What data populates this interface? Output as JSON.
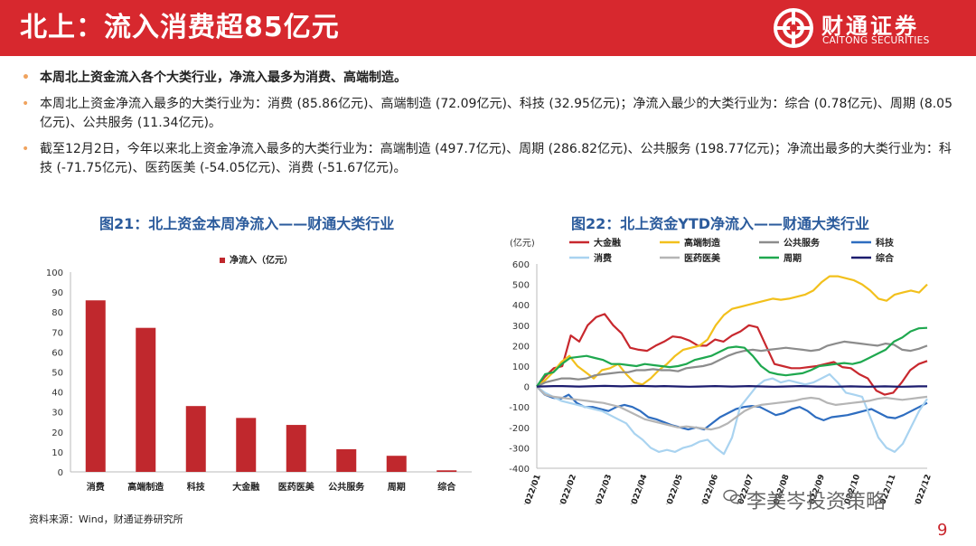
{
  "header": {
    "title": "北上：流入消费超85亿元"
  },
  "logo": {
    "cn": "财通证券",
    "en": "CAITONG SECURITIES",
    "icon": "caitong-logo-icon"
  },
  "bullets": [
    "本周北上资金流入各个大类行业，净流入最多为消费、高端制造。",
    "本周北上资金净流入最多的大类行业为：消费 (85.86亿元)、高端制造 (72.09亿元)、科技 (32.95亿元)；净流入最少的大类行业为：综合 (0.78亿元)、周期 (8.05亿元)、公共服务 (11.34亿元)。",
    "截至12月2日，今年以来北上资金净流入最多的大类行业为：高端制造 (497.7亿元)、周期 (286.82亿元)、公共服务 (198.77亿元)；净流出最多的大类行业为：科技 (-71.75亿元)、医药医美 (-54.05亿元)、消费 (-51.67亿元)。"
  ],
  "figures": {
    "fig21_title": "图21：北上资金本周净流入——财通大类行业",
    "fig22_title": "图22：北上资金YTD净流入——财通大类行业"
  },
  "source": "资料来源：Wind，财通证券研究所",
  "page_number": "9",
  "watermark": "李美岑投资策略",
  "chart_data": [
    {
      "type": "bar",
      "legend": [
        "净流入（亿元）"
      ],
      "categories": [
        "消费",
        "高端制造",
        "科技",
        "大金融",
        "医药医美",
        "公共服务",
        "周期",
        "综合"
      ],
      "values": [
        85.86,
        72.09,
        32.95,
        27,
        23.5,
        11.34,
        8.05,
        0.78
      ],
      "ylim": [
        0,
        100
      ],
      "yticks": [
        0,
        10,
        20,
        30,
        40,
        50,
        60,
        70,
        80,
        90,
        100
      ],
      "color": "#c0282d"
    },
    {
      "type": "line",
      "unit_label": "(亿元)",
      "ylim": [
        -400,
        600
      ],
      "yticks": [
        -400,
        -300,
        -200,
        -100,
        0,
        100,
        200,
        300,
        400,
        500,
        600
      ],
      "xticks": [
        "2022/01",
        "2022/02",
        "2022/03",
        "2022/04",
        "2022/05",
        "2022/06",
        "2022/07",
        "2022/08",
        "2022/09",
        "2022/10",
        "2022/11",
        "2022/12"
      ],
      "series": [
        {
          "name": "大金融",
          "color": "#c8282e",
          "values": [
            0,
            50,
            90,
            100,
            250,
            220,
            300,
            340,
            355,
            300,
            260,
            190,
            180,
            175,
            200,
            220,
            245,
            240,
            225,
            200,
            200,
            230,
            220,
            250,
            270,
            300,
            290,
            200,
            110,
            100,
            90,
            90,
            95,
            100,
            110,
            120,
            95,
            90,
            60,
            40,
            -20,
            -40,
            -30,
            20,
            80,
            110,
            125
          ]
        },
        {
          "name": "高端制造",
          "color": "#f2c01c",
          "values": [
            0,
            30,
            70,
            120,
            150,
            100,
            70,
            40,
            80,
            90,
            110,
            60,
            20,
            10,
            40,
            80,
            110,
            150,
            180,
            190,
            200,
            230,
            300,
            350,
            380,
            390,
            400,
            410,
            420,
            430,
            425,
            430,
            440,
            450,
            470,
            510,
            540,
            540,
            530,
            520,
            500,
            470,
            430,
            420,
            450,
            460,
            470,
            460,
            500
          ]
        },
        {
          "name": "公共服务",
          "color": "#8c8c8c",
          "values": [
            0,
            20,
            30,
            40,
            40,
            35,
            40,
            55,
            60,
            65,
            70,
            70,
            80,
            80,
            85,
            80,
            80,
            75,
            90,
            95,
            100,
            110,
            130,
            150,
            165,
            175,
            180,
            175,
            180,
            185,
            190,
            185,
            180,
            175,
            180,
            200,
            210,
            220,
            215,
            210,
            205,
            200,
            210,
            205,
            180,
            175,
            185,
            200
          ]
        },
        {
          "name": "科技",
          "color": "#2e6dc0",
          "values": [
            0,
            -40,
            -55,
            -60,
            -40,
            -80,
            -100,
            -100,
            -110,
            -120,
            -100,
            -90,
            -100,
            -120,
            -150,
            -160,
            -175,
            -190,
            -200,
            -210,
            -200,
            -210,
            -180,
            -150,
            -130,
            -110,
            -100,
            -95,
            -100,
            -120,
            -140,
            -130,
            -110,
            -100,
            -120,
            -150,
            -165,
            -150,
            -145,
            -140,
            -130,
            -120,
            -110,
            -130,
            -150,
            -155,
            -140,
            -120,
            -100,
            -80
          ]
        },
        {
          "name": "消费",
          "color": "#a9d3f0",
          "values": [
            0,
            -30,
            -50,
            -70,
            -80,
            -90,
            -100,
            -110,
            -120,
            -140,
            -160,
            -180,
            -230,
            -260,
            -300,
            -320,
            -310,
            -320,
            -300,
            -290,
            -270,
            -260,
            -300,
            -330,
            -250,
            -100,
            -50,
            0,
            30,
            40,
            20,
            30,
            20,
            10,
            20,
            40,
            60,
            20,
            -30,
            -40,
            -50,
            -150,
            -250,
            -300,
            -320,
            -280,
            -200,
            -120,
            -60
          ]
        },
        {
          "name": "医药医美",
          "color": "#b5b5b5",
          "values": [
            0,
            -40,
            -50,
            -55,
            -60,
            -65,
            -70,
            -75,
            -80,
            -90,
            -100,
            -120,
            -140,
            -160,
            -170,
            -180,
            -190,
            -200,
            -195,
            -200,
            -205,
            -210,
            -200,
            -180,
            -150,
            -120,
            -100,
            -90,
            -85,
            -80,
            -75,
            -70,
            -60,
            -55,
            -60,
            -80,
            -90,
            -85,
            -80,
            -75,
            -70,
            -60,
            -55,
            -60,
            -65,
            -60,
            -55,
            -50
          ]
        },
        {
          "name": "周期",
          "color": "#1fa84f",
          "values": [
            0,
            60,
            70,
            110,
            140,
            145,
            150,
            140,
            130,
            110,
            110,
            105,
            100,
            110,
            105,
            100,
            95,
            100,
            110,
            130,
            140,
            150,
            170,
            190,
            195,
            190,
            150,
            100,
            70,
            60,
            55,
            60,
            65,
            80,
            100,
            105,
            110,
            115,
            110,
            120,
            140,
            160,
            180,
            220,
            240,
            270,
            285,
            287
          ]
        },
        {
          "name": "综合",
          "color": "#1c1c6e",
          "values": [
            0,
            1,
            2,
            2,
            1,
            0,
            1,
            2,
            3,
            2,
            1,
            2,
            3,
            2,
            1,
            2,
            1,
            0,
            -1,
            0,
            1,
            2,
            1,
            0,
            1,
            2,
            1,
            0,
            -1,
            0,
            1,
            2,
            1,
            0,
            0,
            -1,
            0,
            1,
            0,
            -1,
            0,
            1,
            0,
            -1,
            0,
            1,
            1
          ]
        }
      ]
    }
  ]
}
